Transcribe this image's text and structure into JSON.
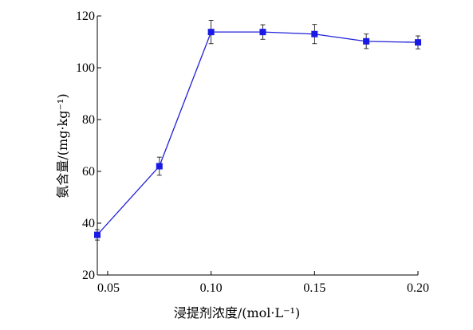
{
  "chart_data": {
    "type": "line",
    "title": "",
    "xlabel": "浸提剂浓度/(mol·L⁻¹)",
    "ylabel": "氨含量/(mg·kg⁻¹)",
    "xlim": [
      0.045,
      0.2
    ],
    "ylim": [
      20,
      120
    ],
    "xticks": [
      0.05,
      0.1,
      0.15,
      0.2
    ],
    "xtick_labels": [
      "0.05",
      "0.10",
      "0.15",
      "0.20"
    ],
    "yticks": [
      20,
      40,
      60,
      80,
      100,
      120
    ],
    "ytick_labels": [
      "20",
      "40",
      "60",
      "80",
      "100",
      "120"
    ],
    "grid": false,
    "line_color": "#2020d8",
    "marker_color": "#1a1ae6",
    "series": [
      {
        "x": [
          0.045,
          0.075,
          0.1,
          0.125,
          0.15,
          0.175,
          0.2
        ],
        "y": [
          35.5,
          62.0,
          113.8,
          113.8,
          113.0,
          110.2,
          109.8
        ],
        "error": [
          2.0,
          3.5,
          4.5,
          2.8,
          3.7,
          2.8,
          2.5
        ]
      }
    ]
  }
}
